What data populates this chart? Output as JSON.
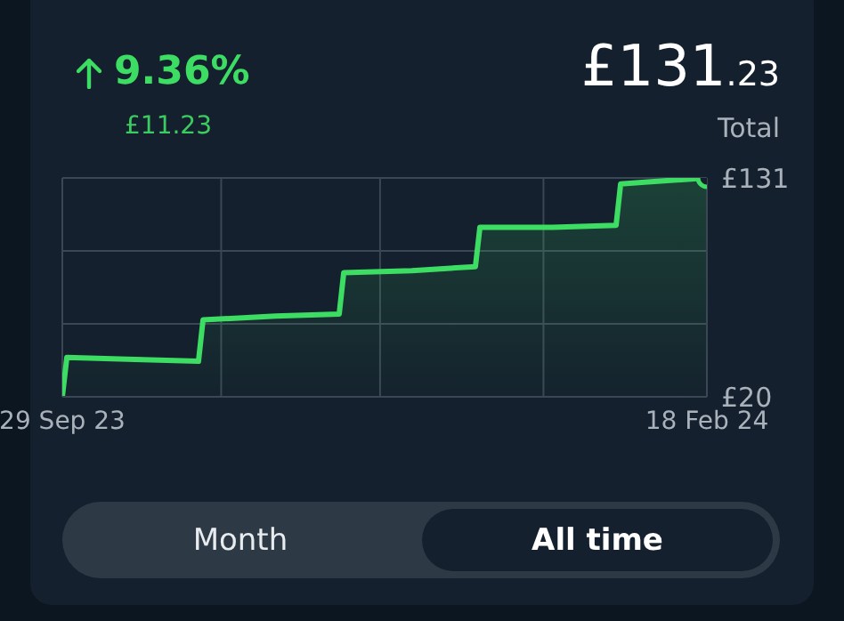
{
  "chart_data": {
    "type": "area",
    "title": "9.36%",
    "subtitle": "£11.23",
    "annotations": [
      "£131.23",
      "Total",
      "Month",
      "All time"
    ],
    "x": [
      "2023-09-29",
      "2023-09-30",
      "2023-10-15",
      "2023-10-29",
      "2023-10-30",
      "2023-11-15",
      "2023-11-29",
      "2023-11-30",
      "2023-12-15",
      "2023-12-29",
      "2023-12-30",
      "2024-01-15",
      "2024-01-29",
      "2024-01-30",
      "2024-02-05",
      "2024-02-18"
    ],
    "values": [
      20,
      40,
      39,
      38,
      59,
      61,
      62,
      83,
      84,
      86,
      106,
      106,
      107,
      128,
      129,
      131
    ],
    "color": "#3ddc63",
    "xlim": [
      "2023-09-29",
      "2024-02-18"
    ],
    "xticks": [
      {
        "value": "2023-09-29",
        "label": "29 Sep 23"
      },
      {
        "value": "2023-11-03",
        "label": null
      },
      {
        "value": "2023-12-08",
        "label": null
      },
      {
        "value": "2024-01-13",
        "label": null
      },
      {
        "value": "2024-02-18",
        "label": "18 Feb 24"
      }
    ],
    "ylim": [
      20,
      131
    ],
    "yticks": [
      {
        "value": 20,
        "label": "£20"
      },
      {
        "value": 57,
        "label": null
      },
      {
        "value": 94,
        "label": null
      },
      {
        "value": 131,
        "label": "£131"
      }
    ],
    "grid": true
  }
}
